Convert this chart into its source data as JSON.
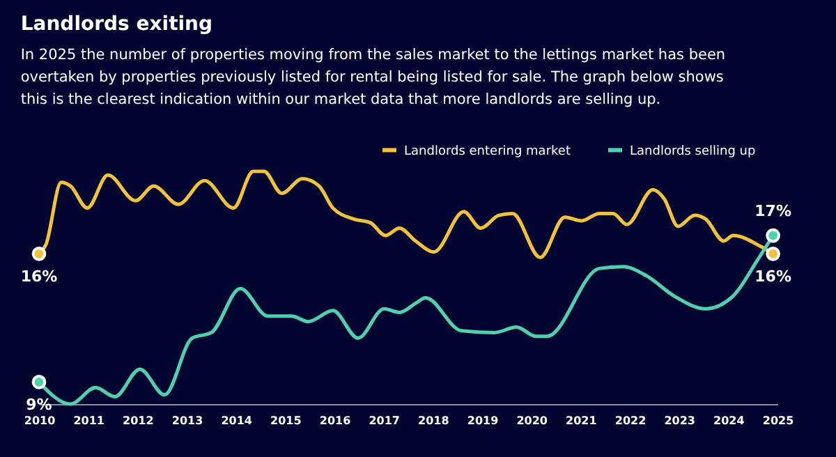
{
  "chart_data": {
    "type": "line",
    "title": "Landlords exiting",
    "subtitle": "In 2025 the number of properties moving from the sales market to the lettings market has been overtaken by properties previously listed for rental being listed for sale. The graph below shows this is the clearest indication within our market data that more landlords are selling up.",
    "xlim": [
      2010,
      2025
    ],
    "xticks": [
      2010,
      2011,
      2012,
      2013,
      2014,
      2015,
      2016,
      2017,
      2018,
      2019,
      2020,
      2021,
      2022,
      2023,
      2024,
      2025
    ],
    "legend": "top right",
    "grid": false,
    "marker": "none",
    "line_style": "solid",
    "series": [
      {
        "name": "Landlords entering market",
        "color": "#f2c23c",
        "x": [
          2010.0,
          2010.14,
          2010.45,
          2010.64,
          2010.98,
          2011.4,
          2011.96,
          2012.33,
          2012.83,
          2013.36,
          2013.95,
          2014.35,
          2014.57,
          2014.93,
          2015.35,
          2015.69,
          2015.97,
          2016.39,
          2016.73,
          2017.04,
          2017.32,
          2017.65,
          2018.02,
          2018.63,
          2018.97,
          2019.34,
          2019.62,
          2020.18,
          2020.68,
          2021.02,
          2021.38,
          2021.66,
          2021.94,
          2022.47,
          2022.7,
          2022.98,
          2023.32,
          2023.54,
          2023.91,
          2024.1,
          2024.66,
          2024.91
        ],
        "values": [
          16,
          16.5,
          19.9,
          19.7,
          18.5,
          20.3,
          18.9,
          19.7,
          18.7,
          20.0,
          18.5,
          20.5,
          20.5,
          19.3,
          20.1,
          19.7,
          18.5,
          17.9,
          17.7,
          17.0,
          17.4,
          16.7,
          16.1,
          18.3,
          17.4,
          18.1,
          18.2,
          15.8,
          18.0,
          17.8,
          18.2,
          18.2,
          17.6,
          19.5,
          19.0,
          17.5,
          18.1,
          17.9,
          16.7,
          17.0,
          16.4,
          16
        ],
        "value_labels": [
          "16%",
          null,
          null,
          null,
          null,
          null,
          null,
          null,
          null,
          null,
          null,
          null,
          null,
          null,
          null,
          null,
          null,
          null,
          null,
          null,
          null,
          null,
          null,
          null,
          null,
          null,
          null,
          null,
          null,
          null,
          null,
          null,
          null,
          null,
          null,
          null,
          null,
          null,
          null,
          null,
          null,
          "16%"
        ]
      },
      {
        "name": "Landlords selling up",
        "color": "#4fd1b0",
        "x": [
          2010.0,
          2010.64,
          2011.15,
          2011.54,
          2012.05,
          2012.55,
          2013.11,
          2013.5,
          2014.09,
          2014.65,
          2015.13,
          2015.47,
          2015.97,
          2016.48,
          2017.01,
          2017.32,
          2017.65,
          2017.85,
          2018.58,
          2019.25,
          2019.7,
          2020.09,
          2020.32,
          2021.38,
          2021.86,
          2022.34,
          2022.9,
          2023.54,
          2024.1,
          2024.58,
          2024.91
        ],
        "values": [
          9,
          7.8,
          8.7,
          8.2,
          9.7,
          8.3,
          11.4,
          11.7,
          14.1,
          12.6,
          12.6,
          12.3,
          12.9,
          11.4,
          13.0,
          12.8,
          13.3,
          13.6,
          11.8,
          11.7,
          12.0,
          11.5,
          11.5,
          15.2,
          15.3,
          14.8,
          13.7,
          13.0,
          13.7,
          15.6,
          17
        ],
        "value_labels": [
          "9%",
          null,
          null,
          null,
          null,
          null,
          null,
          null,
          null,
          null,
          null,
          null,
          null,
          null,
          null,
          null,
          null,
          null,
          null,
          null,
          null,
          null,
          null,
          null,
          null,
          null,
          null,
          null,
          null,
          null,
          "17%"
        ]
      }
    ]
  }
}
